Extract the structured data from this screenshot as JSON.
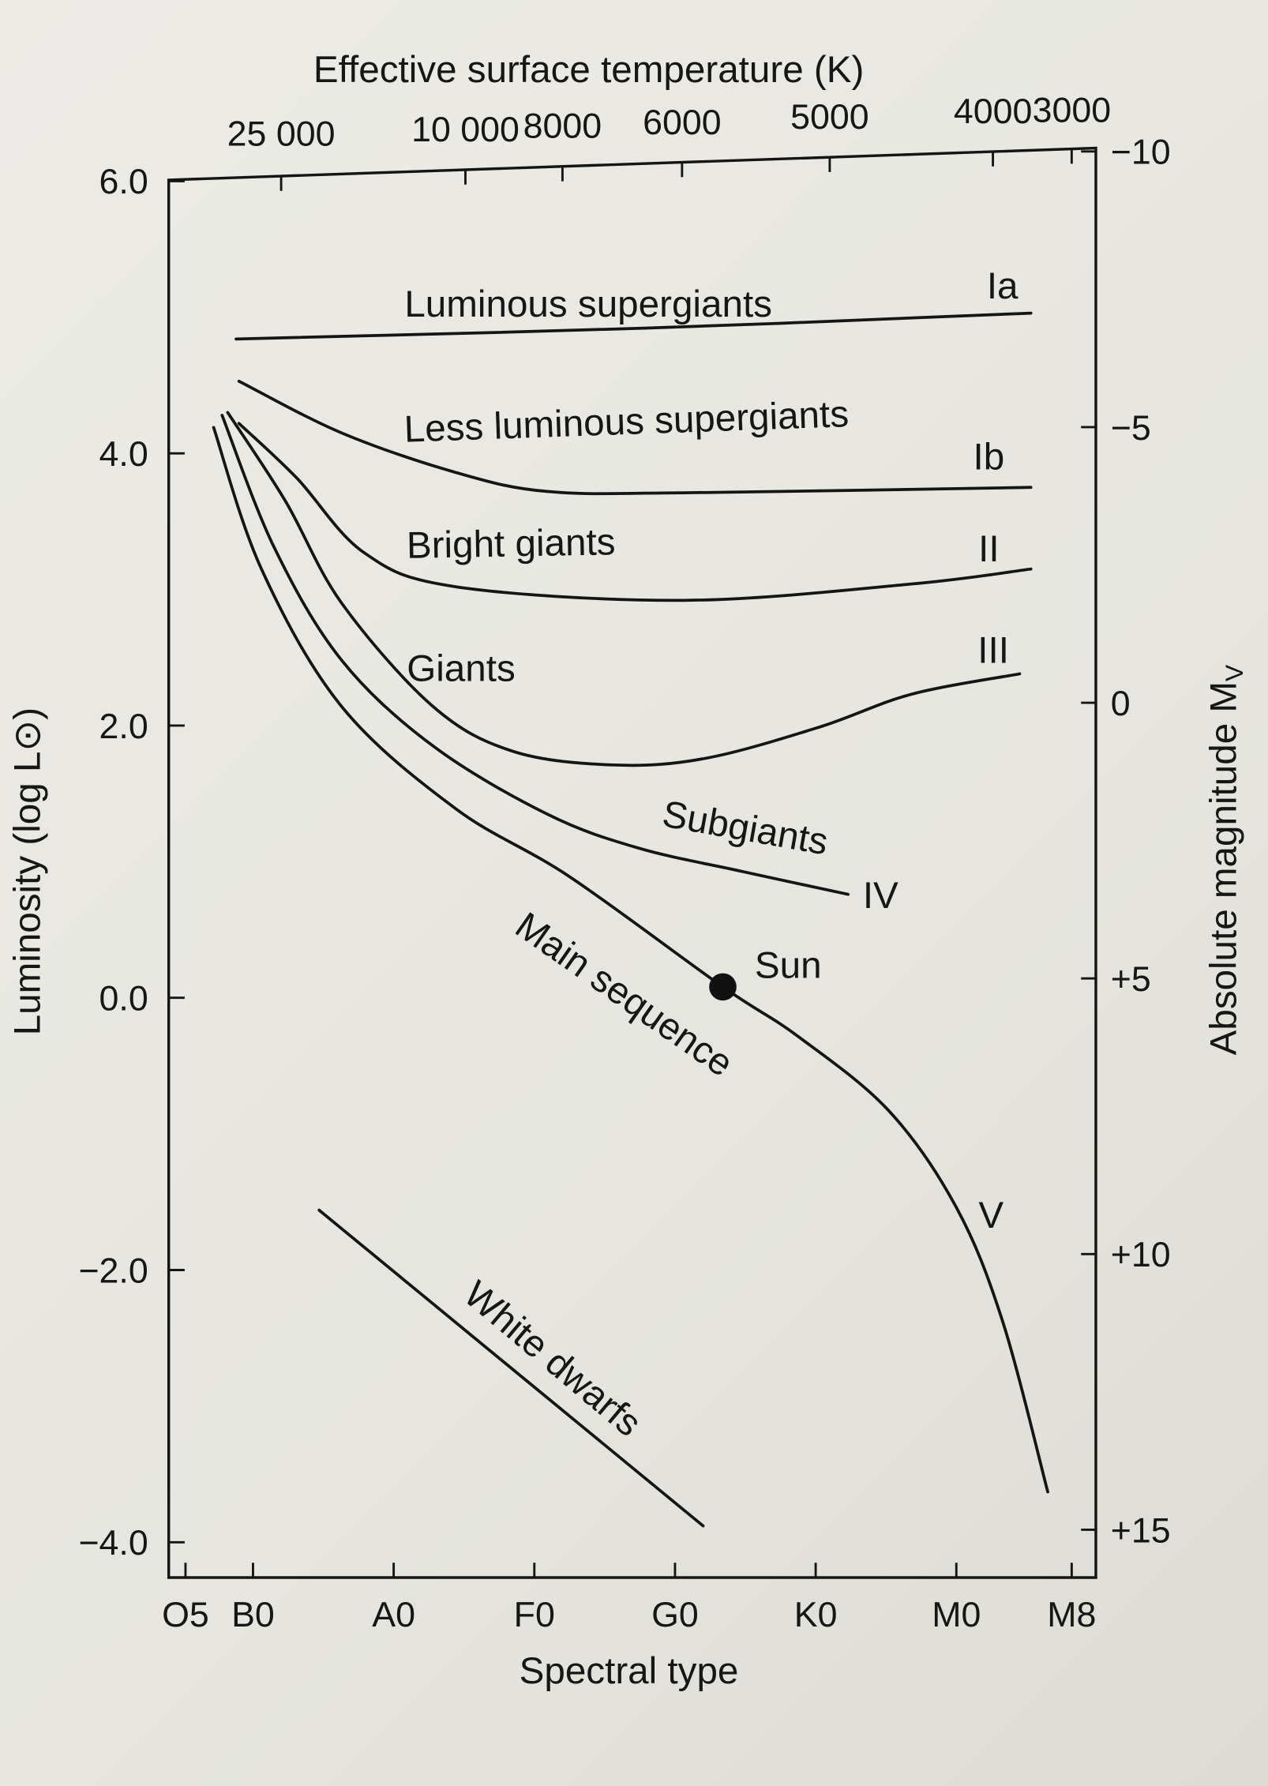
{
  "chart_data": {
    "type": "line",
    "title": "",
    "xlabel": "Spectral type",
    "ylabel": "Luminosity (log L⊙)",
    "top_xlabel": "Effective surface temperature (K)",
    "right_ylabel": "Absolute magnitude M",
    "right_ylabel_sub": "V",
    "x_units": "spectral index (B0=0, A0=1, F0=2, G0=3, K0=4, M0=5)",
    "xlim": [
      -0.6,
      6.2
    ],
    "ylim": [
      -4.3,
      6.0
    ],
    "x_ticks": [
      {
        "label": "O5",
        "value": -0.48
      },
      {
        "label": "B0",
        "value": 0
      },
      {
        "label": "A0",
        "value": 1
      },
      {
        "label": "F0",
        "value": 2
      },
      {
        "label": "G0",
        "value": 3
      },
      {
        "label": "K0",
        "value": 4
      },
      {
        "label": "M0",
        "value": 5
      },
      {
        "label": "M8",
        "value": 5.82
      }
    ],
    "y_ticks": [
      {
        "label": "6.0",
        "value": 6
      },
      {
        "label": "4.0",
        "value": 4
      },
      {
        "label": "2.0",
        "value": 2
      },
      {
        "label": "0.0",
        "value": 0
      },
      {
        "label": "−2.0",
        "value": -2
      },
      {
        "label": "−4.0",
        "value": -4
      }
    ],
    "top_ticks": [
      {
        "label": "25 000",
        "value": 0.2
      },
      {
        "label": "10 000",
        "value": 1.51
      },
      {
        "label": "8000",
        "value": 2.2
      },
      {
        "label": "6000",
        "value": 3.05
      },
      {
        "label": "5000",
        "value": 4.1
      },
      {
        "label": "4000",
        "value": 5.26
      },
      {
        "label": "3000",
        "value": 5.82
      }
    ],
    "right_ticks": [
      {
        "label": "−10",
        "value": -10
      },
      {
        "label": "−5",
        "value": -5
      },
      {
        "label": "0",
        "value": 0
      },
      {
        "label": "+5",
        "value": 5
      },
      {
        "label": "+10",
        "value": 10
      },
      {
        "label": "+15",
        "value": 15
      }
    ],
    "series": [
      {
        "name": "Luminous supergiants",
        "class": "Ia",
        "points": [
          [
            -0.12,
            4.84
          ],
          [
            2.8,
            4.92
          ],
          [
            5.53,
            5.03
          ]
        ]
      },
      {
        "name": "Less luminous supergiants",
        "class": "Ib",
        "points": [
          [
            -0.1,
            4.53
          ],
          [
            0.63,
            4.15
          ],
          [
            1.44,
            3.86
          ],
          [
            2.09,
            3.72
          ],
          [
            3.06,
            3.71
          ],
          [
            5.53,
            3.75
          ]
        ]
      },
      {
        "name": "Bright giants",
        "class": "II",
        "points": [
          [
            -0.1,
            4.22
          ],
          [
            0.31,
            3.82
          ],
          [
            0.79,
            3.27
          ],
          [
            1.44,
            3.02
          ],
          [
            3.06,
            2.92
          ],
          [
            4.68,
            3.04
          ],
          [
            5.53,
            3.15
          ]
        ]
      },
      {
        "name": "Giants",
        "class": "III",
        "points": [
          [
            -0.18,
            4.3
          ],
          [
            0.23,
            3.65
          ],
          [
            0.63,
            2.9
          ],
          [
            1.28,
            2.14
          ],
          [
            1.85,
            1.81
          ],
          [
            2.57,
            1.71
          ],
          [
            3.22,
            1.76
          ],
          [
            4.03,
            1.99
          ],
          [
            4.68,
            2.23
          ],
          [
            5.45,
            2.38
          ]
        ]
      },
      {
        "name": "Subgiants",
        "class": "IV",
        "points": [
          [
            -0.22,
            4.28
          ],
          [
            0.15,
            3.31
          ],
          [
            0.63,
            2.48
          ],
          [
            1.28,
            1.85
          ],
          [
            2.09,
            1.35
          ],
          [
            2.74,
            1.1
          ],
          [
            3.47,
            0.93
          ],
          [
            4.23,
            0.76
          ]
        ]
      },
      {
        "name": "Main sequence",
        "class": "V",
        "points": [
          [
            -0.28,
            4.19
          ],
          [
            0.06,
            3.15
          ],
          [
            0.63,
            2.14
          ],
          [
            1.44,
            1.39
          ],
          [
            2.25,
            0.89
          ],
          [
            3.34,
            0.08
          ],
          [
            3.87,
            -0.28
          ],
          [
            4.52,
            -0.83
          ],
          [
            5.0,
            -1.54
          ],
          [
            5.33,
            -2.38
          ],
          [
            5.65,
            -3.63
          ]
        ]
      },
      {
        "name": "White dwarfs",
        "class": "",
        "points": [
          [
            0.47,
            -1.56
          ],
          [
            3.2,
            -3.88
          ]
        ]
      }
    ],
    "annotations": [
      {
        "text": "Sun",
        "x": 3.34,
        "y": 0.08,
        "marker": "filled-circle"
      }
    ]
  }
}
